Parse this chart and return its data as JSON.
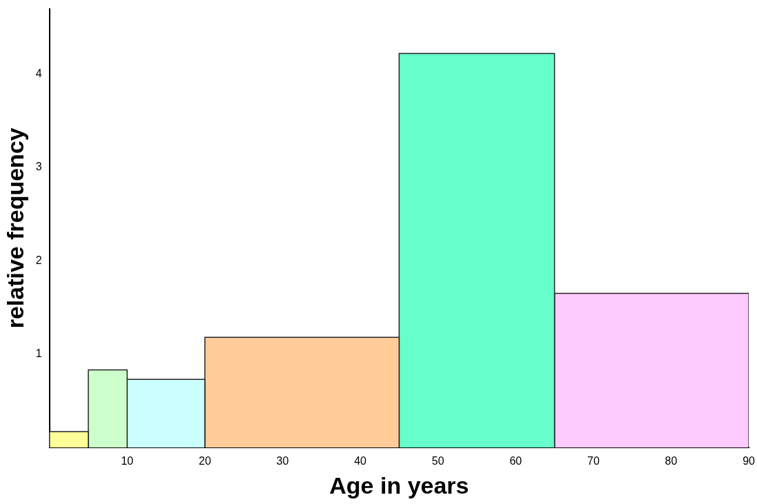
{
  "chart_data": {
    "type": "histogram",
    "xlabel": "Age in years",
    "ylabel": "relative frequency",
    "bins": [
      0,
      5,
      10,
      20,
      45,
      65,
      90
    ],
    "values": [
      0.17,
      0.83,
      0.73,
      1.18,
      4.22,
      1.65
    ],
    "colors": [
      "#ffff99",
      "#ccffcc",
      "#ccffff",
      "#ffcc99",
      "#66ffcc",
      "#ffccff"
    ],
    "xlim": [
      0,
      90
    ],
    "xticks": [
      10,
      20,
      30,
      40,
      50,
      60,
      70,
      80,
      90
    ],
    "ylim": [
      0,
      4.7
    ],
    "yticks": [
      1,
      2,
      3,
      4
    ],
    "grid": false,
    "legend": false
  }
}
